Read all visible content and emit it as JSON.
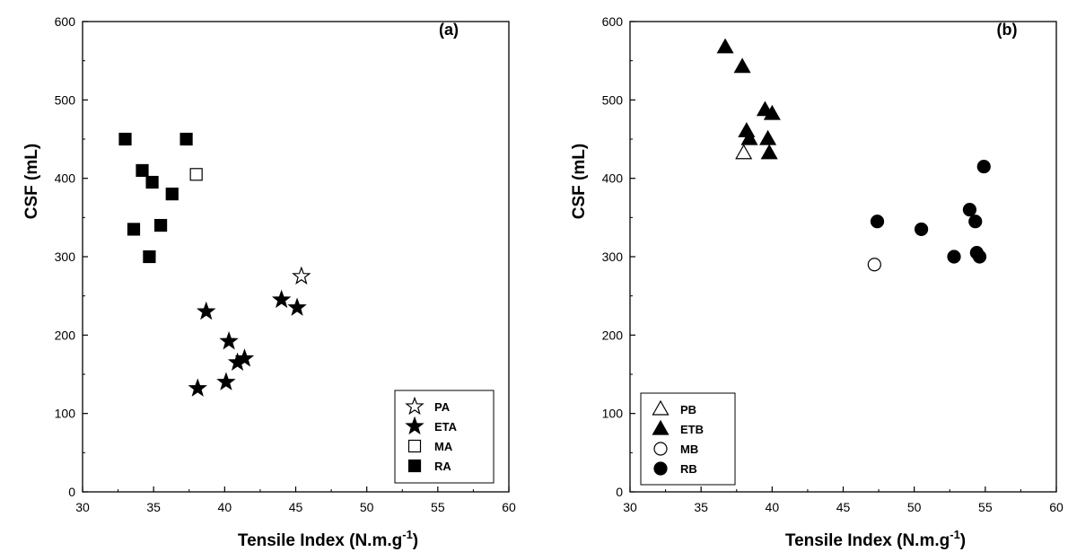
{
  "chart_data": [
    {
      "type": "scatter",
      "panel_label": "(a)",
      "xlabel": "Tensile Index (N.m.g",
      "xlabel_sup": "-1",
      "xlabel_close": ")",
      "ylabel": "CSF (mL)",
      "xlim": [
        30,
        60
      ],
      "ylim": [
        0,
        600
      ],
      "xticks": [
        30,
        35,
        40,
        45,
        50,
        55,
        60
      ],
      "yticks": [
        0,
        100,
        200,
        300,
        400,
        500,
        600
      ],
      "legend_position": "bottom-right",
      "series": [
        {
          "name": "PA",
          "marker": "star",
          "filled": false,
          "points": [
            [
              45.4,
              275
            ]
          ]
        },
        {
          "name": "ETA",
          "marker": "star",
          "filled": true,
          "points": [
            [
              38.1,
              132
            ],
            [
              38.7,
              230
            ],
            [
              40.1,
              140
            ],
            [
              40.3,
              192
            ],
            [
              40.9,
              165
            ],
            [
              41.4,
              170
            ],
            [
              44.0,
              245
            ],
            [
              45.1,
              235
            ]
          ]
        },
        {
          "name": "MA",
          "marker": "square",
          "filled": false,
          "points": [
            [
              38.0,
              405
            ]
          ]
        },
        {
          "name": "RA",
          "marker": "square",
          "filled": true,
          "points": [
            [
              33.0,
              450
            ],
            [
              33.6,
              335
            ],
            [
              34.2,
              410
            ],
            [
              34.7,
              300
            ],
            [
              34.9,
              395
            ],
            [
              35.5,
              340
            ],
            [
              36.3,
              380
            ],
            [
              37.3,
              450
            ]
          ]
        }
      ]
    },
    {
      "type": "scatter",
      "panel_label": "(b)",
      "xlabel": "Tensile Index (N.m.g",
      "xlabel_sup": "-1",
      "xlabel_close": ")",
      "ylabel": "CSF (mL)",
      "xlim": [
        30,
        60
      ],
      "ylim": [
        0,
        600
      ],
      "xticks": [
        30,
        35,
        40,
        45,
        50,
        55,
        60
      ],
      "yticks": [
        0,
        100,
        200,
        300,
        400,
        500,
        600
      ],
      "legend_position": "bottom-left",
      "series": [
        {
          "name": "PB",
          "marker": "triangle",
          "filled": false,
          "points": [
            [
              38.0,
              432
            ]
          ]
        },
        {
          "name": "ETB",
          "marker": "triangle",
          "filled": true,
          "points": [
            [
              36.7,
              567
            ],
            [
              37.9,
              542
            ],
            [
              38.2,
              460
            ],
            [
              38.4,
              450
            ],
            [
              39.5,
              487
            ],
            [
              39.7,
              450
            ],
            [
              39.8,
              432
            ],
            [
              40.0,
              482
            ]
          ]
        },
        {
          "name": "MB",
          "marker": "circle",
          "filled": false,
          "points": [
            [
              47.2,
              290
            ]
          ]
        },
        {
          "name": "RB",
          "marker": "circle",
          "filled": true,
          "points": [
            [
              47.4,
              345
            ],
            [
              50.5,
              335
            ],
            [
              52.8,
              300
            ],
            [
              53.9,
              360
            ],
            [
              54.3,
              345
            ],
            [
              54.4,
              305
            ],
            [
              54.6,
              300
            ],
            [
              54.9,
              415
            ]
          ]
        }
      ]
    }
  ]
}
